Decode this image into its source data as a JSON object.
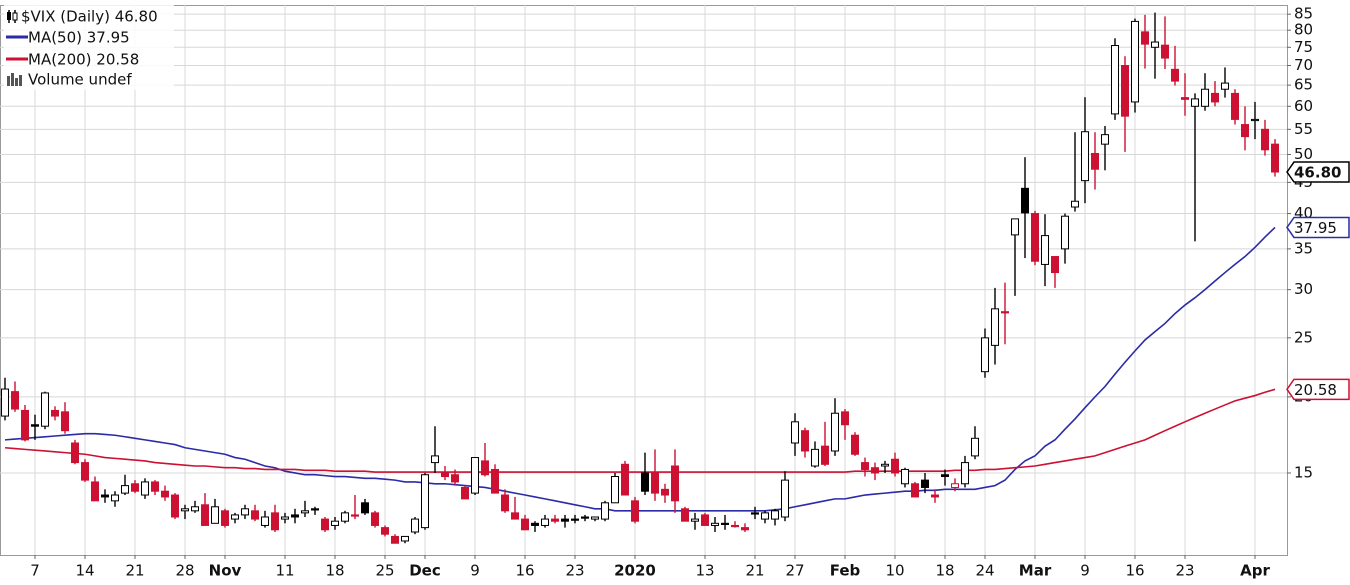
{
  "chart_data": {
    "type": "candlestick",
    "title": "$VIX (Daily) 46.80",
    "volume_label": "Volume undef",
    "close_label": "46.80",
    "log_scale": true,
    "grid": true,
    "up_color": "#000000",
    "down_color": "#cc1133",
    "ylim": [
      11,
      88
    ],
    "yticks": [
      15,
      20,
      25,
      30,
      35,
      40,
      45,
      50,
      55,
      60,
      65,
      70,
      75,
      80,
      85
    ],
    "categories": [
      null,
      null,
      null,
      "7",
      null,
      null,
      null,
      null,
      "14",
      null,
      null,
      null,
      null,
      "21",
      null,
      null,
      null,
      null,
      "28",
      null,
      null,
      null,
      "Nov",
      null,
      null,
      null,
      null,
      null,
      "11",
      null,
      null,
      null,
      null,
      "18",
      null,
      null,
      null,
      null,
      "25",
      null,
      null,
      null,
      "Dec",
      null,
      null,
      null,
      null,
      "9",
      null,
      null,
      null,
      null,
      "16",
      null,
      null,
      null,
      null,
      "23",
      null,
      null,
      null,
      null,
      null,
      "2020",
      null,
      null,
      null,
      null,
      null,
      null,
      "13",
      null,
      null,
      null,
      null,
      "21",
      null,
      null,
      null,
      "27",
      null,
      null,
      null,
      null,
      "Feb",
      null,
      null,
      null,
      null,
      "10",
      null,
      null,
      null,
      null,
      "18",
      null,
      null,
      null,
      "24",
      null,
      null,
      null,
      null,
      "Mar",
      null,
      null,
      null,
      null,
      "9",
      null,
      null,
      null,
      null,
      "16",
      null,
      null,
      null,
      null,
      "23",
      null,
      null,
      null,
      null,
      null,
      null,
      "Apr",
      null,
      null
    ],
    "open": [
      18.6,
      20.4,
      19.0,
      18.0,
      17.9,
      19.0,
      18.9,
      16.8,
      15.6,
      14.5,
      13.8,
      13.5,
      13.9,
      14.4,
      13.8,
      14.5,
      14.0,
      13.8,
      13.0,
      13.0,
      13.3,
      12.4,
      13.0,
      12.6,
      12.8,
      13.0,
      12.3,
      12.9,
      12.6,
      12.8,
      12.9,
      13.1,
      12.6,
      12.3,
      12.5,
      12.8,
      13.4,
      12.9,
      12.2,
      11.8,
      11.6,
      12.0,
      12.2,
      15.6,
      15.0,
      14.9,
      14.2,
      13.9,
      15.7,
      15.2,
      13.8,
      12.9,
      12.6,
      12.4,
      12.3,
      12.6,
      12.6,
      12.6,
      12.7,
      12.6,
      12.6,
      13.4,
      15.5,
      13.5,
      15.0,
      15.0,
      14.1,
      15.4,
      13.1,
      12.5,
      12.8,
      12.3,
      12.4,
      12.3,
      12.2,
      12.9,
      12.6,
      12.6,
      12.7,
      16.8,
      17.6,
      15.4,
      16.6,
      16.3,
      18.9,
      17.3,
      15.6,
      15.3,
      15.4,
      15.8,
      14.4,
      14.4,
      14.6,
      13.8,
      14.9,
      14.2,
      14.4,
      16.0,
      22.0,
      24.3,
      27.6,
      36.9,
      44.0,
      40.0,
      33.0,
      34.0,
      35.0,
      41.0,
      45.3,
      50.2,
      52.0,
      58.3,
      70.0,
      61.0,
      79.5,
      75.0,
      75.6,
      69.0,
      62.0,
      60.0,
      60.0,
      63.0,
      64.0,
      63.0,
      56.0,
      57.0,
      55.0,
      52.0
    ],
    "high": [
      21.5,
      21.2,
      19.4,
      18.7,
      20.4,
      19.3,
      19.6,
      17.0,
      15.8,
      14.8,
      14.1,
      14.0,
      14.9,
      14.6,
      14.7,
      14.6,
      14.3,
      13.9,
      13.3,
      13.5,
      13.9,
      13.6,
      13.1,
      12.9,
      13.3,
      13.3,
      13.0,
      13.3,
      12.9,
      13.1,
      13.5,
      13.2,
      12.7,
      12.7,
      13.0,
      13.8,
      13.6,
      13.0,
      12.3,
      11.9,
      11.8,
      12.7,
      15.0,
      17.9,
      15.4,
      15.2,
      14.3,
      15.9,
      16.8,
      15.5,
      14.1,
      13.7,
      12.8,
      12.5,
      12.8,
      12.8,
      12.8,
      12.8,
      12.8,
      12.7,
      13.5,
      15.0,
      15.7,
      13.7,
      16.2,
      16.4,
      14.4,
      16.4,
      13.2,
      12.9,
      12.9,
      12.7,
      12.8,
      12.5,
      12.4,
      13.2,
      13.0,
      13.1,
      15.1,
      18.8,
      17.8,
      16.9,
      18.2,
      19.9,
      19.1,
      17.5,
      15.9,
      15.6,
      15.7,
      16.2,
      15.3,
      14.5,
      15.0,
      14.1,
      15.2,
      14.7,
      16.0,
      17.9,
      25.9,
      30.2,
      30.8,
      39.2,
      49.5,
      40.4,
      39.9,
      34.0,
      40.0,
      54.4,
      62.1,
      54.4,
      55.7,
      77.6,
      72.5,
      83.6,
      84.8,
      85.5,
      84.3,
      75.4,
      68.0,
      63.0,
      68.0,
      66.0,
      69.5,
      64.0,
      60.0,
      61.0,
      57.0,
      53.0
    ],
    "low": [
      18.3,
      18.9,
      16.9,
      17.0,
      17.7,
      18.3,
      17.4,
      15.5,
      14.5,
      13.5,
      13.4,
      13.2,
      13.8,
      13.9,
      13.6,
      13.8,
      13.5,
      12.6,
      12.6,
      12.9,
      12.3,
      12.4,
      12.2,
      12.4,
      12.6,
      12.5,
      12.2,
      12.0,
      12.4,
      12.4,
      12.7,
      12.8,
      12.0,
      12.1,
      12.4,
      12.6,
      12.8,
      12.2,
      11.8,
      11.5,
      11.5,
      11.9,
      12.1,
      15.0,
      14.6,
      14.3,
      13.6,
      13.8,
      14.8,
      13.9,
      12.9,
      12.6,
      12.1,
      12.0,
      12.2,
      12.4,
      12.2,
      12.4,
      12.5,
      12.5,
      12.5,
      13.4,
      13.8,
      12.4,
      13.8,
      13.5,
      13.4,
      12.9,
      12.5,
      12.1,
      12.3,
      12.0,
      12.1,
      12.2,
      12.0,
      12.6,
      12.4,
      12.3,
      12.5,
      16.0,
      15.9,
      15.3,
      15.4,
      16.0,
      17.0,
      16.0,
      14.8,
      14.6,
      15.0,
      14.8,
      14.2,
      13.7,
      13.9,
      13.4,
      14.3,
      14.0,
      14.2,
      15.8,
      21.5,
      22.6,
      24.4,
      29.3,
      33.8,
      32.9,
      30.4,
      30.2,
      33.1,
      40.3,
      41.6,
      43.8,
      47.1,
      57.0,
      50.5,
      58.6,
      69.2,
      66.6,
      69.1,
      64.9,
      57.9,
      36.0,
      59.0,
      60.0,
      62.0,
      56.0,
      50.8,
      53.0,
      49.8,
      46.0
    ],
    "close": [
      20.6,
      19.1,
      17.0,
      17.9,
      20.3,
      18.6,
      17.6,
      15.6,
      14.6,
      13.5,
      13.7,
      13.8,
      14.3,
      14.0,
      14.5,
      14.0,
      13.7,
      12.7,
      13.1,
      13.2,
      12.3,
      13.2,
      12.3,
      12.8,
      13.1,
      12.6,
      12.7,
      12.1,
      12.7,
      12.7,
      13.0,
      13.1,
      12.1,
      12.5,
      12.9,
      12.8,
      12.9,
      12.3,
      11.9,
      11.5,
      11.8,
      12.6,
      14.9,
      16.0,
      14.8,
      14.5,
      13.6,
      15.9,
      14.9,
      13.9,
      13.0,
      12.6,
      12.1,
      12.3,
      12.6,
      12.5,
      12.5,
      12.6,
      12.7,
      12.7,
      13.4,
      14.8,
      13.8,
      12.5,
      14.0,
      13.9,
      13.8,
      13.5,
      12.5,
      12.6,
      12.3,
      12.4,
      12.4,
      12.3,
      12.1,
      12.9,
      12.9,
      13.0,
      14.6,
      18.2,
      16.3,
      16.4,
      15.5,
      18.8,
      18.0,
      16.1,
      15.2,
      15.0,
      15.5,
      15.0,
      15.2,
      13.7,
      14.2,
      13.7,
      14.8,
      14.4,
      15.6,
      17.1,
      25.0,
      27.9,
      27.6,
      39.2,
      40.1,
      33.4,
      36.8,
      32.0,
      39.6,
      41.9,
      54.5,
      47.3,
      53.9,
      75.5,
      57.8,
      82.7,
      75.9,
      76.5,
      72.0,
      66.0,
      61.6,
      61.7,
      64.0,
      61.0,
      65.5,
      57.1,
      53.5,
      57.1,
      50.9,
      46.8
    ],
    "series": [
      {
        "name": "MA(50) 37.95",
        "color": "#2b2ba8",
        "last_label": "37.95",
        "values": [
          17.0,
          17.05,
          17.1,
          17.15,
          17.2,
          17.25,
          17.3,
          17.35,
          17.4,
          17.4,
          17.35,
          17.3,
          17.2,
          17.1,
          17.0,
          16.9,
          16.8,
          16.7,
          16.5,
          16.4,
          16.3,
          16.2,
          16.1,
          15.9,
          15.8,
          15.6,
          15.4,
          15.3,
          15.1,
          15.0,
          14.9,
          14.9,
          14.85,
          14.8,
          14.8,
          14.75,
          14.7,
          14.7,
          14.65,
          14.6,
          14.5,
          14.5,
          14.45,
          14.4,
          14.4,
          14.35,
          14.3,
          14.25,
          14.2,
          14.1,
          14.0,
          13.9,
          13.8,
          13.7,
          13.6,
          13.5,
          13.4,
          13.3,
          13.2,
          13.1,
          13.1,
          13.0,
          13.0,
          13.0,
          13.0,
          13.0,
          13.0,
          13.0,
          13.0,
          13.0,
          13.0,
          13.0,
          13.0,
          13.0,
          13.0,
          13.0,
          13.0,
          13.05,
          13.1,
          13.2,
          13.3,
          13.4,
          13.5,
          13.6,
          13.6,
          13.7,
          13.8,
          13.85,
          13.9,
          13.95,
          14.0,
          14.0,
          14.05,
          14.05,
          14.1,
          14.1,
          14.1,
          14.1,
          14.2,
          14.3,
          14.6,
          15.2,
          15.7,
          16.0,
          16.6,
          17.0,
          17.7,
          18.4,
          19.2,
          20.0,
          20.8,
          21.8,
          22.8,
          23.8,
          24.8,
          25.6,
          26.4,
          27.4,
          28.3,
          29.1,
          30.0,
          31.0,
          32.0,
          33.0,
          34.0,
          35.2,
          36.6,
          37.95
        ]
      },
      {
        "name": "MA(200) 20.58",
        "color": "#cc1133",
        "last_label": "20.58",
        "values": [
          16.5,
          16.45,
          16.4,
          16.35,
          16.3,
          16.25,
          16.2,
          16.15,
          16.1,
          16.0,
          15.9,
          15.85,
          15.8,
          15.75,
          15.7,
          15.6,
          15.55,
          15.5,
          15.45,
          15.4,
          15.4,
          15.35,
          15.3,
          15.3,
          15.25,
          15.25,
          15.2,
          15.2,
          15.2,
          15.2,
          15.15,
          15.15,
          15.15,
          15.1,
          15.1,
          15.1,
          15.1,
          15.05,
          15.05,
          15.05,
          15.05,
          15.05,
          15.05,
          15.05,
          15.05,
          15.05,
          15.05,
          15.05,
          15.05,
          15.05,
          15.05,
          15.05,
          15.05,
          15.05,
          15.05,
          15.05,
          15.05,
          15.05,
          15.05,
          15.05,
          15.05,
          15.05,
          15.05,
          15.05,
          15.05,
          15.05,
          15.05,
          15.05,
          15.05,
          15.05,
          15.05,
          15.05,
          15.05,
          15.05,
          15.05,
          15.05,
          15.05,
          15.05,
          15.05,
          15.05,
          15.05,
          15.05,
          15.05,
          15.05,
          15.05,
          15.1,
          15.1,
          15.1,
          15.1,
          15.1,
          15.1,
          15.1,
          15.1,
          15.1,
          15.1,
          15.15,
          15.15,
          15.15,
          15.2,
          15.2,
          15.25,
          15.3,
          15.35,
          15.4,
          15.5,
          15.6,
          15.7,
          15.8,
          15.9,
          16.0,
          16.2,
          16.4,
          16.6,
          16.8,
          17.0,
          17.3,
          17.6,
          17.9,
          18.2,
          18.5,
          18.8,
          19.1,
          19.4,
          19.7,
          19.9,
          20.1,
          20.35,
          20.58
        ]
      }
    ]
  }
}
